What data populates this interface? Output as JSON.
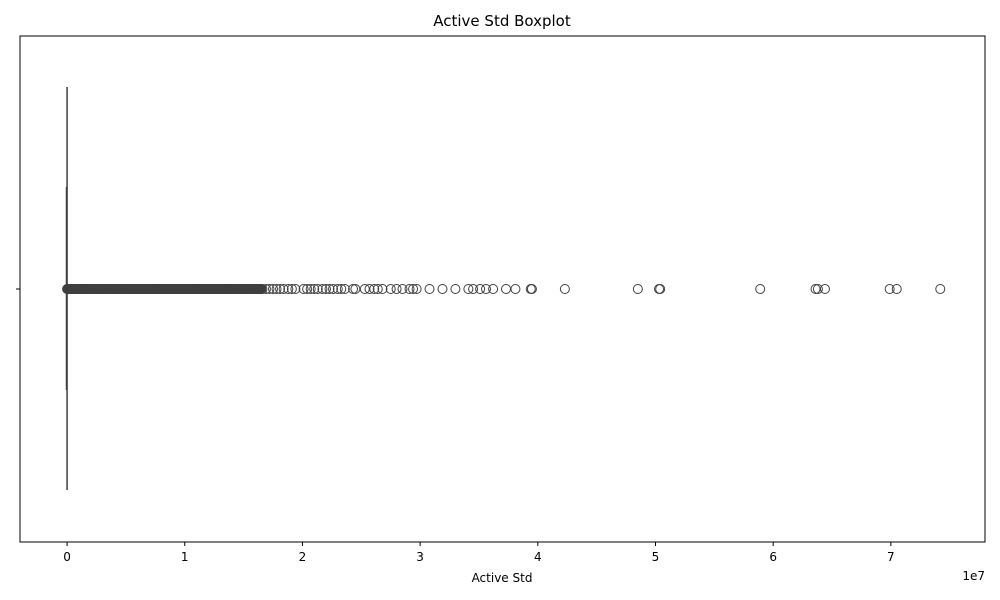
{
  "chart_data": {
    "type": "boxplot",
    "orientation": "horizontal",
    "title": "Active Std Boxplot",
    "xlabel": "Active Std",
    "ylabel": "",
    "x_offset_text": "1e7",
    "xlim": [
      -4000000,
      78000000
    ],
    "x_ticks": [
      0,
      10000000,
      20000000,
      30000000,
      40000000,
      50000000,
      60000000,
      70000000
    ],
    "x_tick_labels": [
      "0",
      "1",
      "2",
      "3",
      "4",
      "5",
      "6",
      "7"
    ],
    "y_tick_labels": [
      ""
    ],
    "grid": false,
    "legend": "none",
    "colors": {
      "box_edge": "#3f3f3f",
      "outlier_edge": "#3f3f3f",
      "axes": "#000000"
    },
    "box": {
      "min": 0,
      "q1": 0,
      "median": 0,
      "q3": 0,
      "max": 0
    },
    "outlier_groups": [
      {
        "from": 0,
        "to": 16500000,
        "count": 330
      }
    ],
    "outliers": [
      16600000,
      16900000,
      17200000,
      17500000,
      17800000,
      18100000,
      18400000,
      18800000,
      19100000,
      19400000,
      20100000,
      20400000,
      20700000,
      21000000,
      21300000,
      21700000,
      22000000,
      22300000,
      22600000,
      23000000,
      23300000,
      23600000,
      24300000,
      24500000,
      25300000,
      25700000,
      26100000,
      26400000,
      26800000,
      27500000,
      28000000,
      28500000,
      29100000,
      29400000,
      29700000,
      30800000,
      31900000,
      33000000,
      34100000,
      34500000,
      35100000,
      35600000,
      36200000,
      37300000,
      38100000,
      39400000,
      39500000,
      42300000,
      48500000,
      50300000,
      50400000,
      58900000,
      63600000,
      63800000,
      64400000,
      69900000,
      70500000,
      74200000
    ]
  }
}
